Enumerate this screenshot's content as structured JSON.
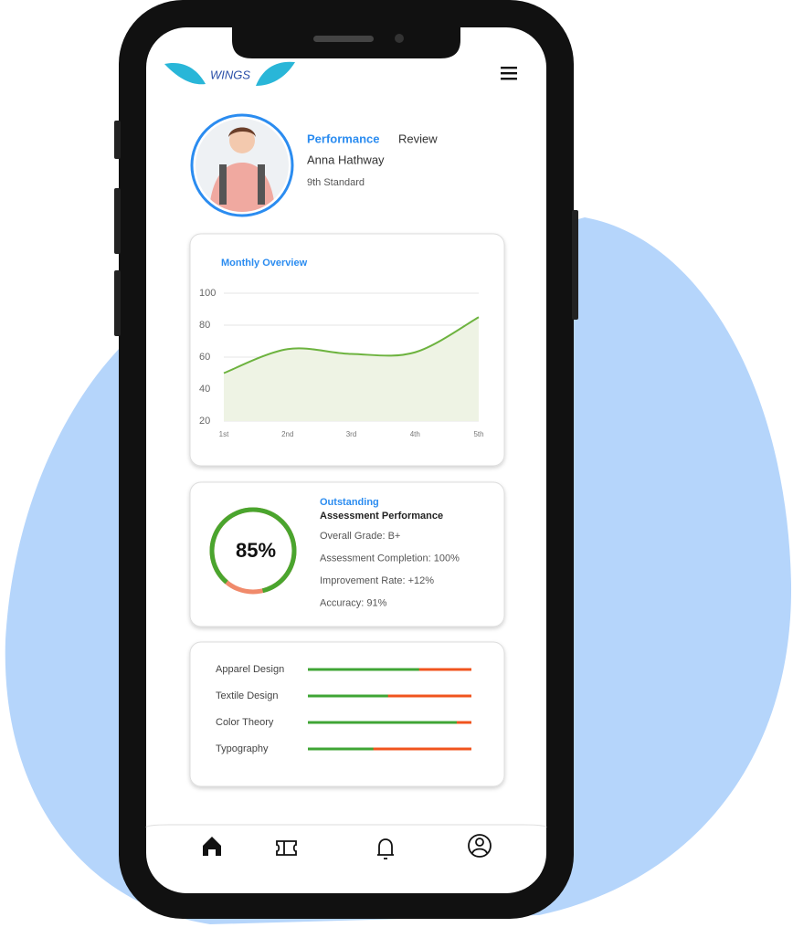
{
  "header": {
    "logo": "WINGS"
  },
  "profile": {
    "title_highlight": "Performance",
    "title_rest": "Review",
    "name": "Anna Hathway",
    "grade": "9th Standard"
  },
  "chart_data": {
    "type": "line",
    "title": "Monthly Overview",
    "categories": [
      "1st",
      "2nd",
      "3rd",
      "4th",
      "5th"
    ],
    "values": [
      50,
      65,
      62,
      63,
      85
    ],
    "color": "#6db33f",
    "ylim": [
      20,
      100
    ],
    "yticks": [
      100,
      80,
      60,
      40,
      20
    ],
    "grid": true
  },
  "performance": {
    "status": "Outstanding",
    "title": "Assessment Performance",
    "score": {
      "value": 85,
      "label": "85%"
    },
    "details": [
      "Overall Grade: B+",
      "Assessment Completion: 100%",
      "Improvement Rate: +12%",
      "Accuracy: 91%"
    ]
  },
  "skills": {
    "items": [
      {
        "name": "Apparel Design",
        "value": 68
      },
      {
        "name": "Textile Design",
        "value": 49
      },
      {
        "name": "Color Theory",
        "value": 91
      },
      {
        "name": "Typography",
        "value": 40
      }
    ],
    "max": 100
  }
}
